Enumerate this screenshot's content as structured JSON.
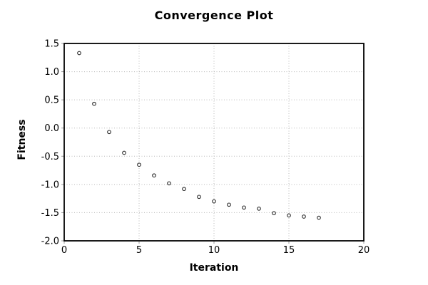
{
  "chart_data": {
    "type": "scatter",
    "title": "Convergence Plot",
    "xlabel": "Iteration",
    "ylabel": "Fitness",
    "x": [
      1,
      2,
      3,
      4,
      5,
      6,
      7,
      8,
      9,
      10,
      11,
      12,
      13,
      14,
      15,
      16,
      17
    ],
    "y": [
      1.33,
      0.43,
      -0.07,
      -0.44,
      -0.65,
      -0.84,
      -0.98,
      -1.08,
      -1.22,
      -1.3,
      -1.36,
      -1.41,
      -1.43,
      -1.51,
      -1.55,
      -1.57,
      -1.59
    ],
    "xlim": [
      0,
      20
    ],
    "ylim": [
      -2.0,
      1.5
    ],
    "xticks": [
      0,
      5,
      10,
      15,
      20
    ],
    "xtick_labels": [
      "0",
      "5",
      "10",
      "15",
      "20"
    ],
    "yticks": [
      1.5,
      1.0,
      0.5,
      0.0,
      -0.5,
      -1.0,
      -1.5,
      -2.0
    ],
    "ytick_labels": [
      "1.5",
      "1.0",
      "0.5",
      "0.0",
      "-0.5",
      "-1.0",
      "-1.5",
      "-2.0"
    ],
    "grid": true,
    "legend": "none",
    "marker": "open-circle",
    "colors": {
      "background": "#ffffff",
      "border": "#000000",
      "grid": "#bdbdbd",
      "tick": "#9e9e9e",
      "point_stroke": "#2b2b2b",
      "point_fill": "#ffffff",
      "text": "#000000"
    }
  }
}
